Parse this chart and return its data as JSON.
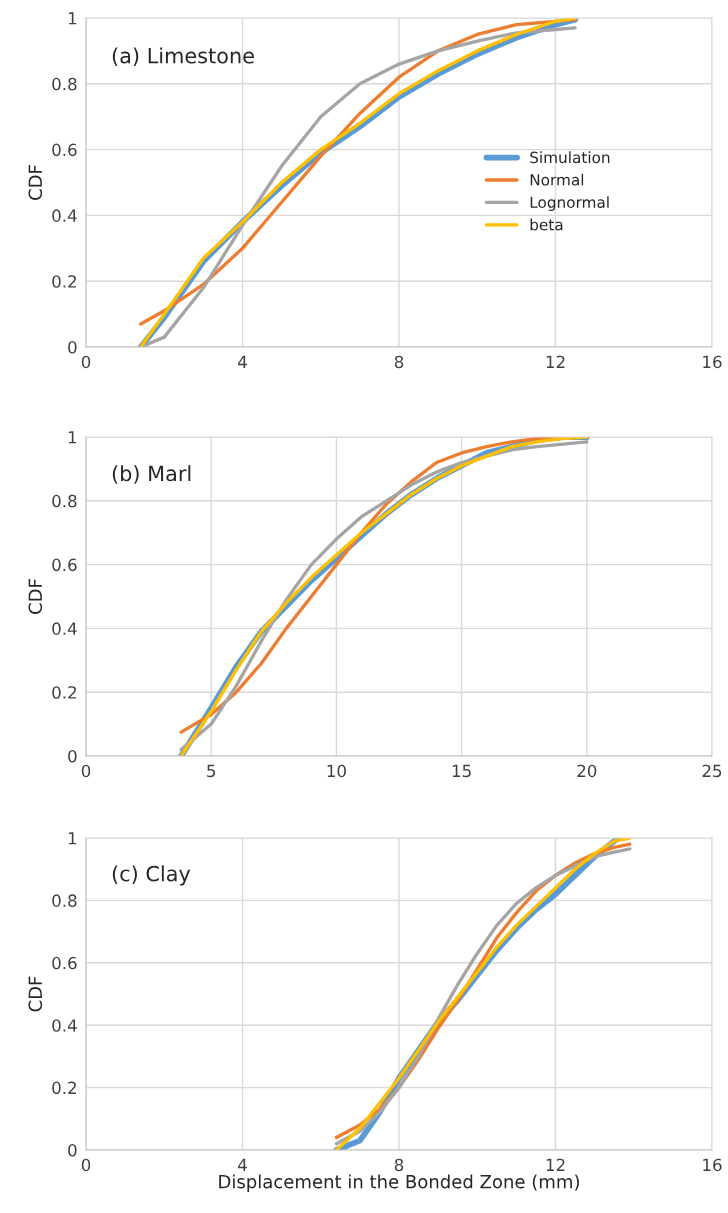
{
  "chart_data": [
    {
      "type": "line",
      "annotations": [
        "(a) Limestone"
      ],
      "ylabel": "CDF",
      "xlim": [
        0,
        16
      ],
      "xticks": [
        0,
        4,
        8,
        12,
        16
      ],
      "ylim": [
        0,
        1
      ],
      "yticks": [
        0,
        0.2,
        0.4,
        0.6,
        0.8,
        1
      ],
      "grid": true,
      "legend": "right",
      "marker": "none",
      "series": [
        {
          "name": "Simulation",
          "color": "#5b9bd5",
          "x": [
            1.4,
            2,
            3,
            4,
            5,
            6,
            7,
            8,
            9,
            10,
            11,
            12,
            12.5
          ],
          "values": [
            0,
            0.09,
            0.26,
            0.38,
            0.49,
            0.59,
            0.67,
            0.76,
            0.83,
            0.89,
            0.94,
            0.98,
            0.995
          ]
        },
        {
          "name": "Normal",
          "color": "#ed7d31",
          "x": [
            1.4,
            2,
            3,
            4,
            5,
            6,
            7,
            8,
            9,
            10,
            11,
            12,
            12.5
          ],
          "values": [
            0.07,
            0.11,
            0.19,
            0.3,
            0.44,
            0.58,
            0.71,
            0.82,
            0.9,
            0.95,
            0.98,
            0.99,
            0.995
          ]
        },
        {
          "name": "Lognormal",
          "color": "#a5a5a5",
          "x": [
            1.4,
            2,
            3,
            4,
            5,
            6,
            7,
            8,
            9,
            10,
            11,
            12,
            12.5
          ],
          "values": [
            0,
            0.03,
            0.18,
            0.37,
            0.55,
            0.7,
            0.8,
            0.86,
            0.9,
            0.93,
            0.955,
            0.965,
            0.97
          ]
        },
        {
          "name": "beta",
          "color": "#ffc000",
          "x": [
            1.4,
            2,
            3,
            4,
            5,
            6,
            7,
            8,
            9,
            10,
            11,
            12,
            12.5
          ],
          "values": [
            0,
            0.1,
            0.27,
            0.38,
            0.5,
            0.6,
            0.68,
            0.77,
            0.84,
            0.9,
            0.95,
            0.99,
            1.0
          ]
        }
      ]
    },
    {
      "type": "line",
      "annotations": [
        "(b) Marl"
      ],
      "ylabel": "CDF",
      "xlim": [
        0,
        25
      ],
      "xticks": [
        0,
        5,
        10,
        15,
        20,
        25
      ],
      "ylim": [
        0,
        1
      ],
      "yticks": [
        0,
        0.2,
        0.4,
        0.6,
        0.8,
        1
      ],
      "grid": true,
      "marker": "none",
      "series": [
        {
          "color": "#5b9bd5",
          "x": [
            3.8,
            5,
            6,
            7,
            8,
            9,
            10,
            11,
            12,
            13,
            14,
            15,
            16,
            17,
            18,
            19,
            20
          ],
          "values": [
            0,
            0.15,
            0.28,
            0.39,
            0.47,
            0.55,
            0.62,
            0.69,
            0.76,
            0.82,
            0.87,
            0.91,
            0.95,
            0.97,
            0.99,
            1.0,
            1.0
          ]
        },
        {
          "color": "#ed7d31",
          "x": [
            3.8,
            5,
            6,
            7,
            8,
            9,
            10,
            11,
            12,
            13,
            14,
            15,
            16,
            17,
            18,
            20
          ],
          "values": [
            0.075,
            0.13,
            0.2,
            0.29,
            0.4,
            0.5,
            0.6,
            0.7,
            0.79,
            0.86,
            0.92,
            0.95,
            0.97,
            0.985,
            0.995,
            1.0
          ]
        },
        {
          "color": "#a5a5a5",
          "x": [
            3.8,
            5,
            6,
            7,
            8,
            9,
            10,
            11,
            12,
            13,
            14,
            15,
            16,
            17,
            18,
            20
          ],
          "values": [
            0.02,
            0.1,
            0.22,
            0.36,
            0.49,
            0.6,
            0.68,
            0.75,
            0.8,
            0.85,
            0.89,
            0.92,
            0.94,
            0.96,
            0.97,
            0.985
          ]
        },
        {
          "color": "#ffc000",
          "x": [
            3.8,
            5,
            6,
            7,
            8,
            9,
            10,
            11,
            12,
            13,
            14,
            15,
            16,
            17,
            18,
            19,
            20
          ],
          "values": [
            0,
            0.14,
            0.27,
            0.39,
            0.48,
            0.56,
            0.63,
            0.7,
            0.76,
            0.82,
            0.87,
            0.91,
            0.94,
            0.97,
            0.985,
            0.995,
            1.0
          ]
        }
      ]
    },
    {
      "type": "line",
      "annotations": [
        "(c) Clay"
      ],
      "ylabel": "CDF",
      "xlabel": "Displacement in the Bonded Zone (mm)",
      "xlim": [
        0,
        16
      ],
      "xticks": [
        0,
        4,
        8,
        12,
        16
      ],
      "ylim": [
        0,
        1
      ],
      "yticks": [
        0,
        0.2,
        0.4,
        0.6,
        0.8,
        1
      ],
      "grid": true,
      "marker": "none",
      "series": [
        {
          "color": "#5b9bd5",
          "x": [
            6.4,
            7,
            7.5,
            8,
            8.5,
            9,
            9.5,
            10,
            10.5,
            11,
            11.5,
            12,
            12.5,
            13,
            13.6
          ],
          "values": [
            0,
            0.03,
            0.12,
            0.23,
            0.32,
            0.41,
            0.48,
            0.56,
            0.64,
            0.71,
            0.77,
            0.82,
            0.88,
            0.94,
            1.0
          ]
        },
        {
          "color": "#ed7d31",
          "x": [
            6.4,
            7,
            7.5,
            8,
            8.5,
            9,
            9.5,
            10,
            10.5,
            11,
            11.5,
            12,
            12.5,
            13,
            13.5,
            13.9
          ],
          "values": [
            0.04,
            0.08,
            0.13,
            0.2,
            0.29,
            0.39,
            0.48,
            0.58,
            0.68,
            0.76,
            0.83,
            0.88,
            0.92,
            0.95,
            0.97,
            0.98
          ]
        },
        {
          "color": "#a5a5a5",
          "x": [
            6.4,
            7,
            7.5,
            8,
            8.5,
            9,
            9.5,
            10,
            10.5,
            11,
            11.5,
            12,
            12.5,
            13,
            13.5,
            13.9
          ],
          "values": [
            0.02,
            0.06,
            0.12,
            0.2,
            0.3,
            0.42,
            0.53,
            0.63,
            0.72,
            0.79,
            0.84,
            0.88,
            0.91,
            0.94,
            0.955,
            0.965
          ]
        },
        {
          "color": "#ffc000",
          "x": [
            6.4,
            7,
            7.5,
            8,
            8.5,
            9,
            9.5,
            10,
            10.5,
            11,
            11.5,
            12,
            12.5,
            13,
            13.5,
            13.9
          ],
          "values": [
            0,
            0.07,
            0.15,
            0.23,
            0.32,
            0.41,
            0.49,
            0.57,
            0.65,
            0.72,
            0.78,
            0.84,
            0.9,
            0.95,
            0.99,
            1.0
          ]
        }
      ]
    }
  ]
}
